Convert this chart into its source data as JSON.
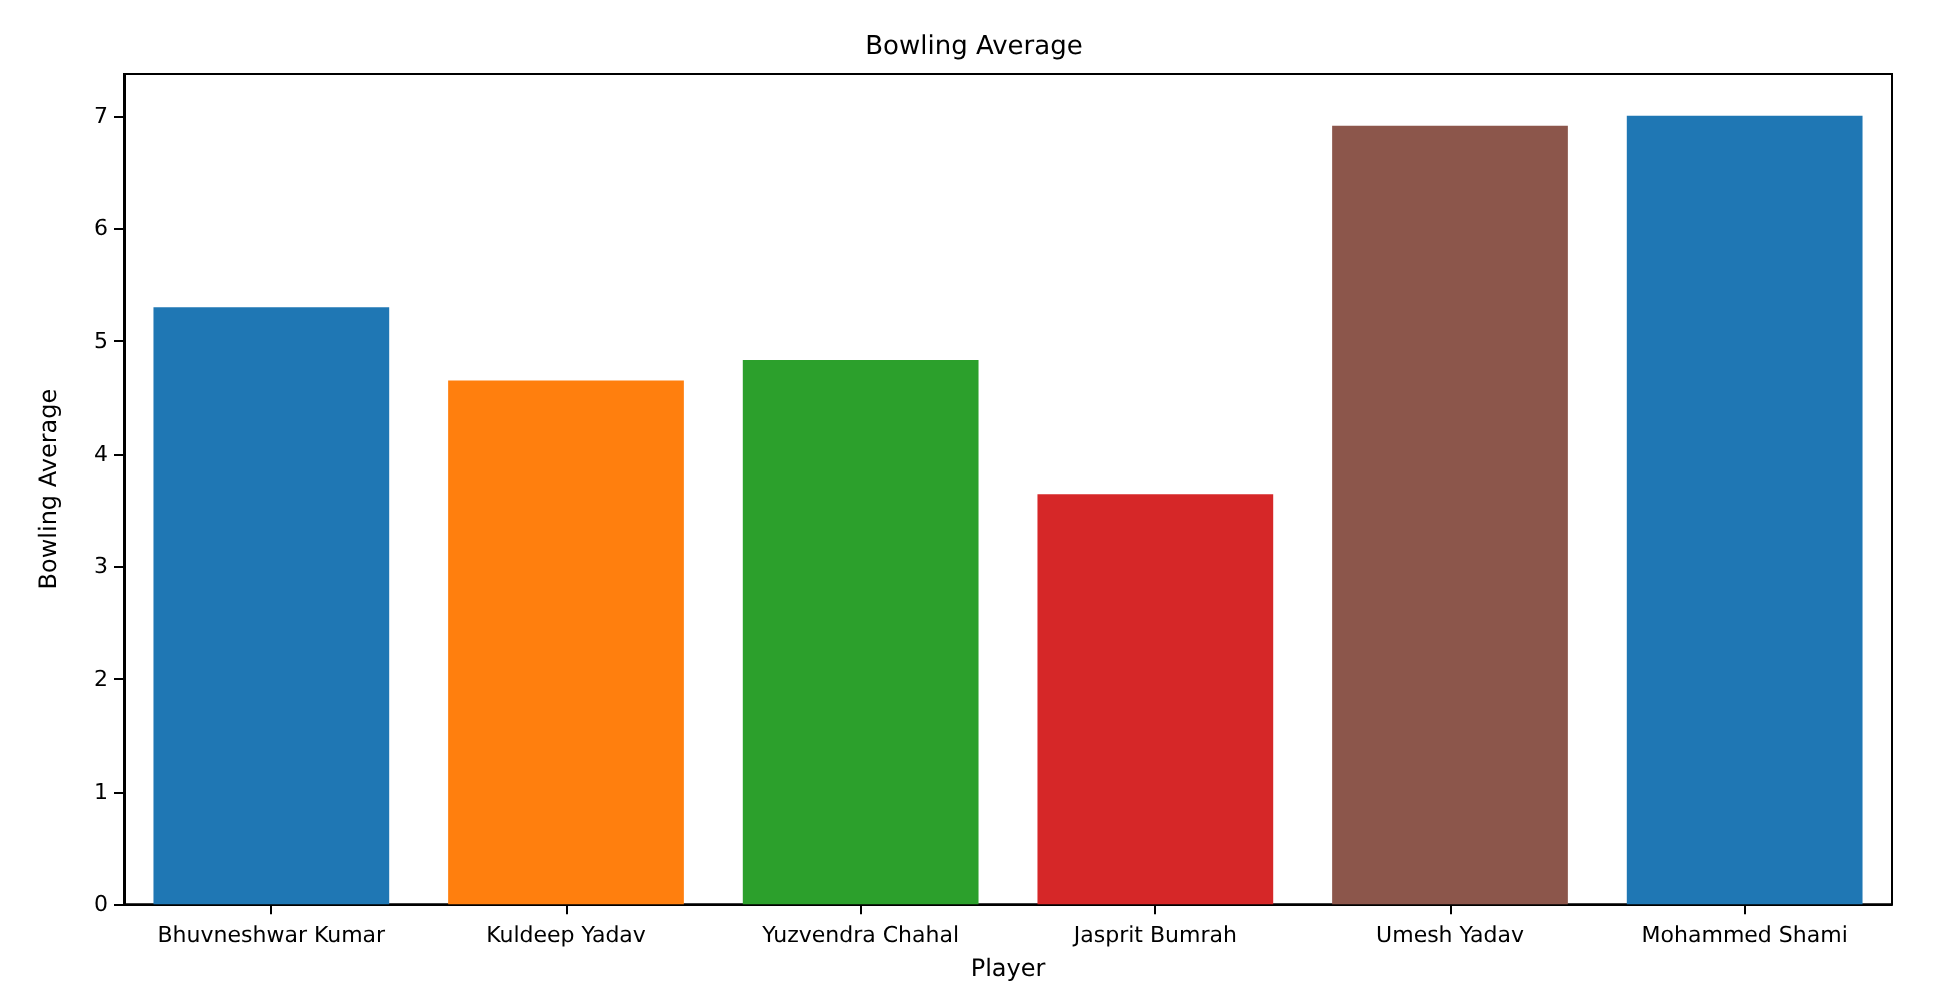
{
  "chart_data": {
    "type": "bar",
    "title": "Bowling Average",
    "xlabel": "Player",
    "ylabel": "Bowling Average",
    "categories": [
      "Bhuvneshwar Kumar",
      "Kuldeep Yadav",
      "Yuzvendra Chahal",
      "Jasprit Bumrah",
      "Umesh Yadav",
      "Mohammed Shami"
    ],
    "values": [
      5.3,
      4.65,
      4.83,
      3.64,
      6.91,
      7.0
    ],
    "colors": [
      "#1f77b4",
      "#ff7f0e",
      "#2ca02c",
      "#d62728",
      "#8c564b",
      "#1f77b4"
    ],
    "ylim": [
      0,
      7.37
    ],
    "yticks": [
      0,
      1,
      2,
      3,
      4,
      5,
      6,
      7
    ],
    "grid": false
  }
}
